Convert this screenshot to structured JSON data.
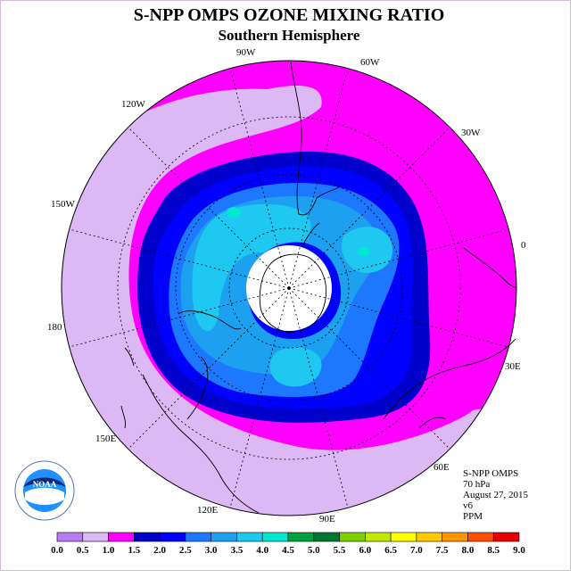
{
  "title": "S-NPP OMPS OZONE MIXING RATIO",
  "subtitle": "Southern Hemisphere",
  "longitude_labels": [
    "90W",
    "60W",
    "30W",
    "0",
    "30E",
    "60E",
    "90E",
    "120E",
    "150E",
    "180",
    "150W",
    "120W"
  ],
  "info": {
    "instrument": "S-NPP OMPS",
    "level": "70 hPa",
    "date": "August 27, 2015",
    "version": "v6",
    "units": "PPM"
  },
  "logo_text": "NOAA",
  "colorbar": {
    "ticks": [
      "0.0",
      "0.5",
      "1.0",
      "1.5",
      "2.0",
      "2.5",
      "3.0",
      "3.5",
      "4.0",
      "4.5",
      "5.0",
      "5.5",
      "6.0",
      "6.5",
      "7.0",
      "7.5",
      "8.0",
      "8.5",
      "9.0"
    ],
    "colors": [
      "#b87cf0",
      "#dcb8f4",
      "#ff00ff",
      "#0000cc",
      "#0000ff",
      "#1e78ff",
      "#1ea0f0",
      "#1ec8f0",
      "#00e8d0",
      "#00a040",
      "#007830",
      "#80d000",
      "#c0e800",
      "#ffff00",
      "#ffc800",
      "#ff9600",
      "#ff5000",
      "#e80000",
      "#8b5a3c"
    ]
  },
  "colors": {
    "band_0_5_1_0": "#dcb8f4",
    "band_1_0_1_5": "#ff00ff",
    "band_1_5_2_0": "#0000cc",
    "band_2_0_2_5": "#0000ff",
    "band_2_5_3_0": "#1e78ff",
    "band_3_0_3_5": "#1ea0f0",
    "band_3_5_4_0": "#1ec8f0",
    "band_4_0_4_5": "#00e8d0"
  }
}
